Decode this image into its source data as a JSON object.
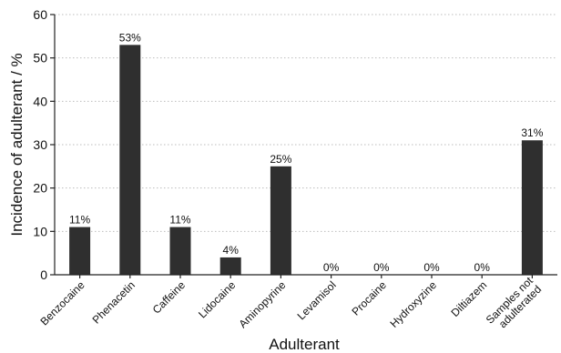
{
  "chart_data": {
    "type": "bar",
    "xlabel": "Adulterant",
    "ylabel": "Incidence of adulterant  / %",
    "ylim": [
      0,
      60
    ],
    "yticks": [
      0,
      10,
      20,
      30,
      40,
      50,
      60
    ],
    "grid": "horizontal dashed",
    "categories": [
      "Benzocaine",
      "Phenacetin",
      "Caffeine",
      "Lidocaine",
      "Aminopyrine",
      "Levamisol",
      "Procaine",
      "Hydroxyzine",
      "Diltiazem",
      "Samples not\nadulterated"
    ],
    "values": [
      11,
      53,
      11,
      4,
      25,
      0,
      0,
      0,
      0,
      31
    ],
    "data_labels": [
      "11%",
      "53%",
      "11%",
      "4%",
      "25%",
      "0%",
      "0%",
      "0%",
      "0%",
      "31%"
    ],
    "bar_color": "#2f2f2f"
  }
}
